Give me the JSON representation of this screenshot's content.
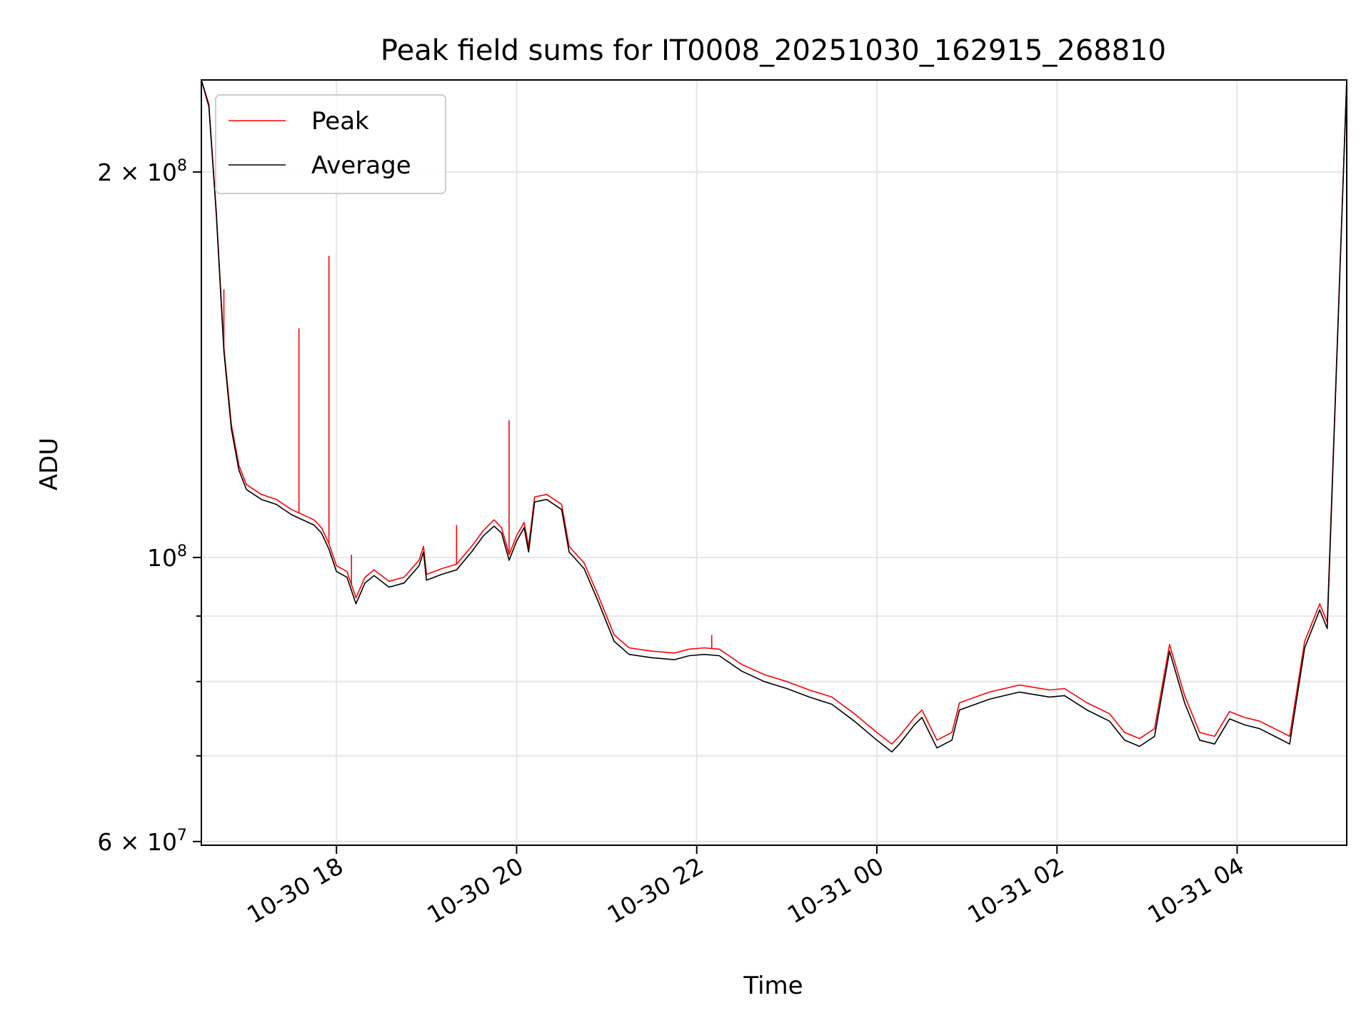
{
  "chart_data": {
    "type": "line",
    "title": "Peak field sums for IT0008_20251030_162915_268810",
    "xlabel": "Time",
    "ylabel": "ADU",
    "x_ticks": [
      {
        "label": "10-30 18",
        "value": "2025-10-30T18:00"
      },
      {
        "label": "10-30 20",
        "value": "2025-10-30T20:00"
      },
      {
        "label": "10-30 22",
        "value": "2025-10-30T22:00"
      },
      {
        "label": "10-31 00",
        "value": "2025-10-31T00:00"
      },
      {
        "label": "10-31 02",
        "value": "2025-10-31T02:00"
      },
      {
        "label": "10-31 04",
        "value": "2025-10-31T04:00"
      }
    ],
    "xlim": [
      "2025-10-30T16:30",
      "2025-10-31T05:13"
    ],
    "y_scale": "log",
    "ylim": [
      59600000,
      236000000
    ],
    "y_ticks": [
      {
        "label": "6 × 10^7",
        "value": 60000000,
        "mantissa": "6 × 10",
        "exponent": "7"
      },
      {
        "label": "10^8",
        "value": 100000000,
        "mantissa": "10",
        "exponent": "8"
      },
      {
        "label": "2 × 10^8",
        "value": 200000000,
        "mantissa": "2 × 10",
        "exponent": "8"
      }
    ],
    "y_minor_ticks": [
      70000000,
      80000000,
      90000000
    ],
    "grid": true,
    "legend": {
      "position": "top-left",
      "entries": [
        {
          "label": "Peak",
          "color": "#ff0000"
        },
        {
          "label": "Average",
          "color": "#000000"
        }
      ]
    },
    "series": [
      {
        "name": "Average",
        "color": "#000000",
        "points": [
          [
            "2025-10-30T16:30",
            236000000
          ],
          [
            "2025-10-30T16:35",
            225000000
          ],
          [
            "2025-10-30T16:40",
            185000000
          ],
          [
            "2025-10-30T16:45",
            145000000
          ],
          [
            "2025-10-30T16:50",
            126000000
          ],
          [
            "2025-10-30T16:55",
            117000000
          ],
          [
            "2025-10-30T17:00",
            113000000
          ],
          [
            "2025-10-30T17:10",
            111000000
          ],
          [
            "2025-10-30T17:20",
            110000000
          ],
          [
            "2025-10-30T17:30",
            108000000
          ],
          [
            "2025-10-30T17:45",
            106000000
          ],
          [
            "2025-10-30T17:50",
            104500000
          ],
          [
            "2025-10-30T17:55",
            101500000
          ],
          [
            "2025-10-30T18:00",
            97500000
          ],
          [
            "2025-10-30T18:07",
            96500000
          ],
          [
            "2025-10-30T18:13",
            92000000
          ],
          [
            "2025-10-30T18:19",
            95500000
          ],
          [
            "2025-10-30T18:25",
            96800000
          ],
          [
            "2025-10-30T18:35",
            94800000
          ],
          [
            "2025-10-30T18:45",
            95500000
          ],
          [
            "2025-10-30T18:55",
            98500000
          ],
          [
            "2025-10-30T18:58",
            101000000
          ],
          [
            "2025-10-30T19:00",
            96000000
          ],
          [
            "2025-10-30T19:10",
            97000000
          ],
          [
            "2025-10-30T19:20",
            97800000
          ],
          [
            "2025-10-30T19:30",
            101000000
          ],
          [
            "2025-10-30T19:38",
            104000000
          ],
          [
            "2025-10-30T19:45",
            105800000
          ],
          [
            "2025-10-30T19:50",
            104500000
          ],
          [
            "2025-10-30T19:55",
            99500000
          ],
          [
            "2025-10-30T20:00",
            103000000
          ],
          [
            "2025-10-30T20:05",
            105500000
          ],
          [
            "2025-10-30T20:08",
            101000000
          ],
          [
            "2025-10-30T20:12",
            110500000
          ],
          [
            "2025-10-30T20:20",
            111000000
          ],
          [
            "2025-10-30T20:30",
            109000000
          ],
          [
            "2025-10-30T20:35",
            101000000
          ],
          [
            "2025-10-30T20:45",
            98000000
          ],
          [
            "2025-10-30T20:55",
            92000000
          ],
          [
            "2025-10-30T21:05",
            86000000
          ],
          [
            "2025-10-30T21:15",
            84000000
          ],
          [
            "2025-10-30T21:30",
            83500000
          ],
          [
            "2025-10-30T21:45",
            83200000
          ],
          [
            "2025-10-30T21:55",
            83800000
          ],
          [
            "2025-10-30T22:05",
            84000000
          ],
          [
            "2025-10-30T22:15",
            83800000
          ],
          [
            "2025-10-30T22:30",
            81500000
          ],
          [
            "2025-10-30T22:45",
            80000000
          ],
          [
            "2025-10-30T23:00",
            79000000
          ],
          [
            "2025-10-30T23:15",
            77800000
          ],
          [
            "2025-10-30T23:30",
            76800000
          ],
          [
            "2025-10-30T23:45",
            74500000
          ],
          [
            "2025-10-31T00:00",
            72000000
          ],
          [
            "2025-10-31T00:10",
            70500000
          ],
          [
            "2025-10-31T00:15",
            71500000
          ],
          [
            "2025-10-31T00:25",
            74000000
          ],
          [
            "2025-10-31T00:30",
            75000000
          ],
          [
            "2025-10-31T00:40",
            71000000
          ],
          [
            "2025-10-31T00:50",
            72000000
          ],
          [
            "2025-10-31T00:55",
            76000000
          ],
          [
            "2025-10-31T01:15",
            77500000
          ],
          [
            "2025-10-31T01:35",
            78500000
          ],
          [
            "2025-10-31T01:55",
            77800000
          ],
          [
            "2025-10-31T02:05",
            78000000
          ],
          [
            "2025-10-31T02:20",
            76000000
          ],
          [
            "2025-10-31T02:35",
            74500000
          ],
          [
            "2025-10-31T02:45",
            72000000
          ],
          [
            "2025-10-31T02:55",
            71200000
          ],
          [
            "2025-10-31T03:05",
            72500000
          ],
          [
            "2025-10-31T03:15",
            84500000
          ],
          [
            "2025-10-31T03:25",
            77000000
          ],
          [
            "2025-10-31T03:35",
            72000000
          ],
          [
            "2025-10-31T03:45",
            71500000
          ],
          [
            "2025-10-31T03:55",
            74800000
          ],
          [
            "2025-10-31T04:05",
            74000000
          ],
          [
            "2025-10-31T04:15",
            73500000
          ],
          [
            "2025-10-31T04:25",
            72500000
          ],
          [
            "2025-10-31T04:35",
            71500000
          ],
          [
            "2025-10-31T04:45",
            85000000
          ],
          [
            "2025-10-31T04:55",
            91000000
          ],
          [
            "2025-10-31T05:00",
            88000000
          ],
          [
            "2025-10-31T05:13",
            236000000
          ]
        ]
      },
      {
        "name": "Peak",
        "color": "#ff0000",
        "points": [
          [
            "2025-10-30T16:30",
            236000000
          ],
          [
            "2025-10-30T16:35",
            226000000
          ],
          [
            "2025-10-30T16:40",
            186000000
          ],
          [
            "2025-10-30T16:45",
            146000000
          ],
          [
            "2025-10-30T16:50",
            127000000
          ],
          [
            "2025-10-30T16:55",
            118000000
          ],
          [
            "2025-10-30T17:00",
            114000000
          ],
          [
            "2025-10-30T17:10",
            112000000
          ],
          [
            "2025-10-30T17:20",
            111000000
          ],
          [
            "2025-10-30T17:30",
            109000000
          ],
          [
            "2025-10-30T17:45",
            107000000
          ],
          [
            "2025-10-30T17:50",
            105500000
          ],
          [
            "2025-10-30T17:55",
            102500000
          ],
          [
            "2025-10-30T18:00",
            98500000
          ],
          [
            "2025-10-30T18:07",
            97500000
          ],
          [
            "2025-10-30T18:13",
            93000000
          ],
          [
            "2025-10-30T18:19",
            96500000
          ],
          [
            "2025-10-30T18:25",
            97800000
          ],
          [
            "2025-10-30T18:35",
            95800000
          ],
          [
            "2025-10-30T18:45",
            96500000
          ],
          [
            "2025-10-30T18:55",
            99500000
          ],
          [
            "2025-10-30T18:58",
            102000000
          ],
          [
            "2025-10-30T19:00",
            97000000
          ],
          [
            "2025-10-30T19:10",
            98000000
          ],
          [
            "2025-10-30T19:20",
            98800000
          ],
          [
            "2025-10-30T19:30",
            102000000
          ],
          [
            "2025-10-30T19:38",
            105000000
          ],
          [
            "2025-10-30T19:45",
            107000000
          ],
          [
            "2025-10-30T19:50",
            105500000
          ],
          [
            "2025-10-30T19:55",
            100500000
          ],
          [
            "2025-10-30T20:00",
            104000000
          ],
          [
            "2025-10-30T20:05",
            106500000
          ],
          [
            "2025-10-30T20:08",
            102000000
          ],
          [
            "2025-10-30T20:12",
            111500000
          ],
          [
            "2025-10-30T20:20",
            112000000
          ],
          [
            "2025-10-30T20:30",
            110000000
          ],
          [
            "2025-10-30T20:35",
            102000000
          ],
          [
            "2025-10-30T20:45",
            99000000
          ],
          [
            "2025-10-30T20:55",
            93000000
          ],
          [
            "2025-10-30T21:05",
            87000000
          ],
          [
            "2025-10-30T21:15",
            85000000
          ],
          [
            "2025-10-30T21:30",
            84500000
          ],
          [
            "2025-10-30T21:45",
            84200000
          ],
          [
            "2025-10-30T21:55",
            84800000
          ],
          [
            "2025-10-30T22:05",
            85000000
          ],
          [
            "2025-10-30T22:15",
            84800000
          ],
          [
            "2025-10-30T22:30",
            82500000
          ],
          [
            "2025-10-30T22:45",
            81000000
          ],
          [
            "2025-10-30T23:00",
            80000000
          ],
          [
            "2025-10-30T23:15",
            78800000
          ],
          [
            "2025-10-30T23:30",
            77800000
          ],
          [
            "2025-10-30T23:45",
            75500000
          ],
          [
            "2025-10-31T00:00",
            73000000
          ],
          [
            "2025-10-31T00:10",
            71500000
          ],
          [
            "2025-10-31T00:15",
            72500000
          ],
          [
            "2025-10-31T00:25",
            75000000
          ],
          [
            "2025-10-31T00:30",
            76000000
          ],
          [
            "2025-10-31T00:40",
            72000000
          ],
          [
            "2025-10-31T00:50",
            73000000
          ],
          [
            "2025-10-31T00:55",
            77000000
          ],
          [
            "2025-10-31T01:15",
            78500000
          ],
          [
            "2025-10-31T01:35",
            79500000
          ],
          [
            "2025-10-31T01:55",
            78800000
          ],
          [
            "2025-10-31T02:05",
            79000000
          ],
          [
            "2025-10-31T02:20",
            77000000
          ],
          [
            "2025-10-31T02:35",
            75500000
          ],
          [
            "2025-10-31T02:45",
            73000000
          ],
          [
            "2025-10-31T02:55",
            72200000
          ],
          [
            "2025-10-31T03:05",
            73500000
          ],
          [
            "2025-10-31T03:15",
            85500000
          ],
          [
            "2025-10-31T03:25",
            78000000
          ],
          [
            "2025-10-31T03:35",
            73000000
          ],
          [
            "2025-10-31T03:45",
            72500000
          ],
          [
            "2025-10-31T03:55",
            75800000
          ],
          [
            "2025-10-31T04:05",
            75000000
          ],
          [
            "2025-10-31T04:15",
            74500000
          ],
          [
            "2025-10-31T04:25",
            73500000
          ],
          [
            "2025-10-31T04:35",
            72500000
          ],
          [
            "2025-10-31T04:45",
            86000000
          ],
          [
            "2025-10-31T04:55",
            92000000
          ],
          [
            "2025-10-31T05:00",
            89000000
          ],
          [
            "2025-10-31T05:13",
            236000000
          ]
        ],
        "spikes": [
          [
            "2025-10-30T16:45",
            162000000
          ],
          [
            "2025-10-30T17:35",
            151000000
          ],
          [
            "2025-10-30T17:55",
            172000000
          ],
          [
            "2025-10-30T18:10",
            100500000
          ],
          [
            "2025-10-30T19:20",
            106000000
          ],
          [
            "2025-10-30T19:55",
            128000000
          ],
          [
            "2025-10-30T22:10",
            87000000
          ]
        ]
      }
    ]
  }
}
